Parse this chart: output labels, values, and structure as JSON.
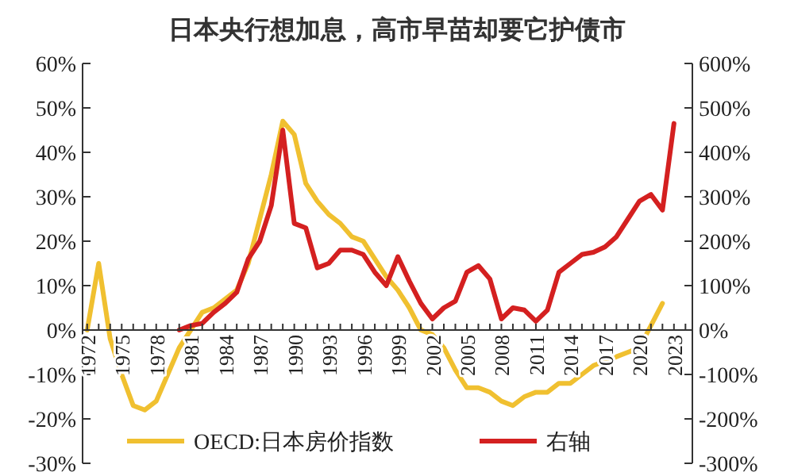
{
  "chart_data": {
    "type": "line",
    "title": "日本央行想加息，高市早苗却要它护债市",
    "xlim": [
      1971.6,
      2024.6
    ],
    "xticks": [
      {
        "value": 1972,
        "label": "1972"
      },
      {
        "value": 1973,
        "label": null
      },
      {
        "value": 1974,
        "label": null
      },
      {
        "value": 1975,
        "label": "1975"
      },
      {
        "value": 1976,
        "label": null
      },
      {
        "value": 1977,
        "label": null
      },
      {
        "value": 1978,
        "label": "1978"
      },
      {
        "value": 1979,
        "label": null
      },
      {
        "value": 1980,
        "label": null
      },
      {
        "value": 1981,
        "label": "1981"
      },
      {
        "value": 1982,
        "label": null
      },
      {
        "value": 1983,
        "label": null
      },
      {
        "value": 1984,
        "label": "1984"
      },
      {
        "value": 1985,
        "label": null
      },
      {
        "value": 1986,
        "label": null
      },
      {
        "value": 1987,
        "label": "1987"
      },
      {
        "value": 1988,
        "label": null
      },
      {
        "value": 1989,
        "label": null
      },
      {
        "value": 1990,
        "label": "1990"
      },
      {
        "value": 1991,
        "label": null
      },
      {
        "value": 1992,
        "label": null
      },
      {
        "value": 1993,
        "label": "1993"
      },
      {
        "value": 1994,
        "label": null
      },
      {
        "value": 1995,
        "label": null
      },
      {
        "value": 1996,
        "label": "1996"
      },
      {
        "value": 1997,
        "label": null
      },
      {
        "value": 1998,
        "label": null
      },
      {
        "value": 1999,
        "label": "1999"
      },
      {
        "value": 2000,
        "label": null
      },
      {
        "value": 2001,
        "label": null
      },
      {
        "value": 2002,
        "label": "2002"
      },
      {
        "value": 2003,
        "label": null
      },
      {
        "value": 2004,
        "label": null
      },
      {
        "value": 2005,
        "label": "2005"
      },
      {
        "value": 2006,
        "label": null
      },
      {
        "value": 2007,
        "label": null
      },
      {
        "value": 2008,
        "label": "2008"
      },
      {
        "value": 2009,
        "label": null
      },
      {
        "value": 2010,
        "label": null
      },
      {
        "value": 2011,
        "label": "2011"
      },
      {
        "value": 2012,
        "label": null
      },
      {
        "value": 2013,
        "label": null
      },
      {
        "value": 2014,
        "label": "2014"
      },
      {
        "value": 2015,
        "label": null
      },
      {
        "value": 2016,
        "label": null
      },
      {
        "value": 2017,
        "label": "2017"
      },
      {
        "value": 2018,
        "label": null
      },
      {
        "value": 2019,
        "label": null
      },
      {
        "value": 2020,
        "label": "2020"
      },
      {
        "value": 2021,
        "label": null
      },
      {
        "value": 2022,
        "label": null
      },
      {
        "value": 2023,
        "label": "2023"
      },
      {
        "value": 2024,
        "label": null
      }
    ],
    "ylim": [
      -30,
      60
    ],
    "yticks": [
      {
        "value": 60,
        "label": "60%"
      },
      {
        "value": 50,
        "label": "50%"
      },
      {
        "value": 40,
        "label": "40%"
      },
      {
        "value": 30,
        "label": "30%"
      },
      {
        "value": 20,
        "label": "20%"
      },
      {
        "value": 10,
        "label": "10%"
      },
      {
        "value": 0,
        "label": "0%"
      },
      {
        "value": -10,
        "label": "-10%"
      },
      {
        "value": -20,
        "label": "-20%"
      },
      {
        "value": -30,
        "label": "-30%"
      }
    ],
    "y2lim": [
      -300,
      600
    ],
    "y2ticks": [
      {
        "value": 600,
        "label": "600%"
      },
      {
        "value": 500,
        "label": "500%"
      },
      {
        "value": 400,
        "label": "400%"
      },
      {
        "value": 300,
        "label": "300%"
      },
      {
        "value": 200,
        "label": "200%"
      },
      {
        "value": 100,
        "label": "100%"
      },
      {
        "value": 0,
        "label": "0%"
      },
      {
        "value": -100,
        "label": "-100%"
      },
      {
        "value": -200,
        "label": "-200%"
      },
      {
        "value": -300,
        "label": "-300%"
      }
    ],
    "legend": "bottom",
    "grid": false,
    "marker": "none",
    "line_style": "solid",
    "series": [
      {
        "name": "OECD:日本房价指数",
        "color": "#f0c030",
        "x": [
          1972,
          1973,
          1974,
          1975,
          1976,
          1977,
          1978,
          1979,
          1980,
          1981,
          1982,
          1983,
          1984,
          1985,
          1986,
          1987,
          1988,
          1989,
          1990,
          1991,
          1992,
          1993,
          1994,
          1995,
          1996,
          1997,
          1998,
          1999,
          2000,
          2001,
          2002,
          2003,
          2004,
          2005,
          2006,
          2007,
          2008,
          2009,
          2010,
          2011,
          2012,
          2013,
          2014,
          2015,
          2016,
          2017,
          2018,
          2019,
          2020,
          2021,
          2022
        ],
        "values": [
          0,
          15,
          -2,
          -10,
          -17,
          -18,
          -16,
          -10,
          -4,
          0,
          4,
          5,
          7,
          9,
          15,
          25,
          35,
          47,
          44,
          33,
          29,
          26,
          24,
          21,
          20,
          16,
          12,
          9,
          5,
          0,
          -1,
          -4,
          -9,
          -13,
          -13,
          -14,
          -16,
          -17,
          -15,
          -14,
          -14,
          -12,
          -12,
          -10,
          -8,
          -7,
          -6,
          -5,
          -4,
          1,
          6
        ]
      },
      {
        "name": "右轴",
        "color": "#d42020",
        "axis": "y2",
        "x": [
          1980,
          1981,
          1982,
          1983,
          1984,
          1985,
          1986,
          1987,
          1988,
          1989,
          1990,
          1991,
          1992,
          1993,
          1994,
          1995,
          1996,
          1997,
          1998,
          1999,
          2000,
          2001,
          2002,
          2003,
          2004,
          2005,
          2006,
          2007,
          2008,
          2009,
          2010,
          2011,
          2012,
          2013,
          2014,
          2015,
          2016,
          2017,
          2018,
          2019,
          2020,
          2021,
          2022,
          2023
        ],
        "values": [
          0,
          10,
          15,
          40,
          60,
          85,
          160,
          200,
          280,
          450,
          240,
          230,
          140,
          150,
          180,
          180,
          170,
          130,
          100,
          165,
          110,
          60,
          25,
          50,
          65,
          130,
          145,
          115,
          25,
          50,
          45,
          20,
          45,
          130,
          150,
          170,
          175,
          187,
          210,
          250,
          290,
          305,
          270,
          465
        ]
      }
    ]
  }
}
